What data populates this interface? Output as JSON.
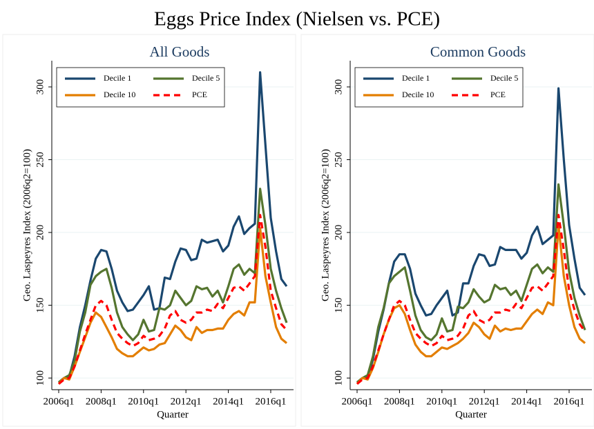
{
  "title": "Eggs Price Index (Nielsen vs. PCE)",
  "chart_data": [
    {
      "type": "line",
      "title": "All Goods",
      "x_label": "Quarter",
      "y_label": "Geo. Laspeyres Index (2006q2=100)",
      "categories": [
        "2006q1",
        null,
        null,
        null,
        null,
        null,
        null,
        null,
        "2008q1",
        null,
        null,
        null,
        null,
        null,
        null,
        null,
        "2010q1",
        null,
        null,
        null,
        null,
        null,
        null,
        null,
        "2012q1",
        null,
        null,
        null,
        null,
        null,
        null,
        null,
        "2014q1",
        null,
        null,
        null,
        null,
        null,
        null,
        null,
        "2016q1",
        null,
        null,
        null
      ],
      "ylim": [
        92,
        318
      ],
      "yticks": [
        100,
        150,
        200,
        250,
        300
      ],
      "grid": true,
      "legend": "top-left",
      "series": [
        {
          "name": "Decile 1",
          "color": "#1a476f",
          "dashed": false,
          "values": [
            97,
            100,
            101,
            115,
            135,
            150,
            167,
            182,
            188,
            187,
            175,
            160,
            152,
            146,
            147,
            152,
            157,
            163,
            147,
            148,
            169,
            168,
            180,
            189,
            188,
            181,
            182,
            195,
            193,
            194,
            195,
            187,
            191,
            204,
            211,
            199,
            203,
            206,
            310,
            260,
            210,
            187,
            168,
            163
          ]
        },
        {
          "name": "Decile 5",
          "color": "#55752f",
          "dashed": false,
          "values": [
            97,
            100,
            102,
            112,
            132,
            145,
            164,
            170,
            173,
            175,
            162,
            145,
            135,
            130,
            126,
            130,
            140,
            132,
            133,
            148,
            147,
            150,
            160,
            155,
            150,
            153,
            163,
            161,
            162,
            156,
            160,
            152,
            163,
            175,
            178,
            171,
            175,
            172,
            230,
            205,
            175,
            160,
            148,
            138
          ]
        },
        {
          "name": "Decile 10",
          "color": "#e37e00",
          "dashed": false,
          "values": [
            96,
            100,
            99,
            108,
            118,
            128,
            138,
            145,
            142,
            135,
            128,
            120,
            117,
            115,
            115,
            118,
            121,
            119,
            120,
            123,
            124,
            130,
            136,
            133,
            128,
            126,
            135,
            131,
            133,
            133,
            134,
            134,
            140,
            144,
            146,
            143,
            152,
            152,
            203,
            170,
            152,
            135,
            127,
            124
          ]
        },
        {
          "name": "PCE",
          "color": "#ff0000",
          "dashed": true,
          "values": [
            96,
            99,
            100,
            108,
            119,
            130,
            140,
            150,
            153,
            150,
            140,
            131,
            127,
            124,
            122,
            124,
            129,
            126,
            127,
            129,
            134,
            143,
            146,
            140,
            138,
            140,
            145,
            145,
            147,
            146,
            151,
            148,
            155,
            162,
            163,
            160,
            165,
            170,
            212,
            190,
            160,
            148,
            137,
            133
          ]
        }
      ]
    },
    {
      "type": "line",
      "title": "Common Goods",
      "x_label": "Quarter",
      "y_label": "Geo. Laspeyres Index (2006q2=100)",
      "categories": [
        "2006q1",
        null,
        null,
        null,
        null,
        null,
        null,
        null,
        "2008q1",
        null,
        null,
        null,
        null,
        null,
        null,
        null,
        "2010q1",
        null,
        null,
        null,
        null,
        null,
        null,
        null,
        "2012q1",
        null,
        null,
        null,
        null,
        null,
        null,
        null,
        "2014q1",
        null,
        null,
        null,
        null,
        null,
        null,
        null,
        "2016q1",
        null,
        null,
        null
      ],
      "ylim": [
        92,
        318
      ],
      "yticks": [
        100,
        150,
        200,
        250,
        300
      ],
      "grid": true,
      "legend": "top-left",
      "series": [
        {
          "name": "Decile 1",
          "color": "#1a476f",
          "dashed": false,
          "values": [
            97,
            100,
            100,
            113,
            132,
            147,
            165,
            180,
            185,
            185,
            175,
            158,
            150,
            143,
            144,
            150,
            155,
            160,
            143,
            145,
            165,
            165,
            177,
            185,
            184,
            177,
            178,
            190,
            188,
            188,
            188,
            182,
            186,
            198,
            204,
            192,
            195,
            198,
            299,
            250,
            205,
            182,
            162,
            157
          ]
        },
        {
          "name": "Decile 5",
          "color": "#55752f",
          "dashed": false,
          "values": [
            97,
            100,
            102,
            115,
            135,
            148,
            165,
            170,
            173,
            176,
            160,
            143,
            133,
            128,
            126,
            130,
            141,
            132,
            133,
            149,
            148,
            152,
            161,
            156,
            152,
            154,
            164,
            161,
            162,
            157,
            160,
            153,
            164,
            175,
            178,
            172,
            176,
            173,
            233,
            205,
            173,
            155,
            143,
            133
          ]
        },
        {
          "name": "Decile 10",
          "color": "#e37e00",
          "dashed": false,
          "values": [
            96,
            100,
            99,
            107,
            118,
            130,
            140,
            148,
            150,
            144,
            133,
            123,
            118,
            115,
            115,
            118,
            121,
            120,
            122,
            124,
            127,
            131,
            138,
            135,
            130,
            127,
            136,
            132,
            134,
            133,
            134,
            134,
            139,
            144,
            147,
            144,
            152,
            150,
            205,
            170,
            150,
            135,
            127,
            124
          ]
        },
        {
          "name": "PCE",
          "color": "#ff0000",
          "dashed": true,
          "values": [
            96,
            99,
            100,
            108,
            119,
            130,
            140,
            150,
            153,
            150,
            140,
            131,
            127,
            124,
            122,
            124,
            129,
            126,
            127,
            129,
            134,
            143,
            146,
            140,
            138,
            140,
            145,
            145,
            147,
            146,
            151,
            148,
            155,
            162,
            163,
            160,
            165,
            170,
            212,
            188,
            160,
            147,
            137,
            132
          ]
        }
      ]
    }
  ]
}
